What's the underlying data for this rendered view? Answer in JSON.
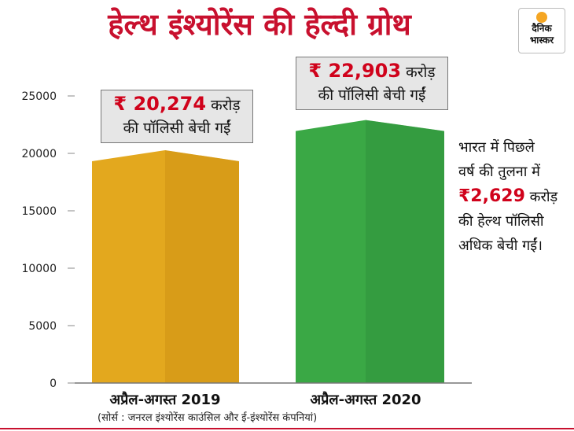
{
  "title": "हेल्थ इंश्योरेंस की हेल्दी ग्रोथ",
  "logo": {
    "line1": "दैनिक",
    "line2": "भास्कर"
  },
  "chart_data": {
    "type": "bar",
    "categories": [
      "अप्रैल-अगस्त 2019",
      "अप्रैल-अगस्त 2020"
    ],
    "values": [
      20274,
      22903
    ],
    "ylim": [
      0,
      25000
    ],
    "yticks": [
      "0",
      "5000",
      "10000",
      "15000",
      "20000",
      "25000"
    ],
    "colors": [
      "#e3a81e",
      "#3aa845"
    ],
    "callouts": [
      {
        "amount": "₹ 20,274",
        "unit": "करोड़",
        "line2": "की पॉलिसी बेची गईं"
      },
      {
        "amount": "₹ 22,903",
        "unit": "करोड़",
        "line2": "की पॉलिसी बेची गईं"
      }
    ]
  },
  "note": {
    "line1": "भारत में पिछले",
    "line2": "वर्ष की तुलना में",
    "amount": "₹2,629",
    "unit": "करोड़",
    "line4": "की हेल्थ पॉलिसी",
    "line5": "अधिक बेची गईं।"
  },
  "source": "(सोर्स : जनरल इंश्योरेंस काउंसिल और ई-इंश्योरेंस कंपनियां)",
  "colors": {
    "title": "#c8102e",
    "accent": "#d0021b",
    "bottom_rule": "#c8102e"
  }
}
